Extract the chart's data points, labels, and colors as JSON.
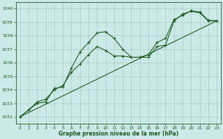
{
  "title": "Graphe pression niveau de la mer (hPa)",
  "bg_color": "#cce8e8",
  "grid_color": "#aacccc",
  "line_color": "#1a5c1a",
  "xlim": [
    -0.5,
    23.5
  ],
  "ylim": [
    1031.5,
    1040.5
  ],
  "yticks": [
    1032,
    1033,
    1034,
    1035,
    1036,
    1037,
    1038,
    1039,
    1040
  ],
  "xticks": [
    0,
    1,
    2,
    3,
    4,
    5,
    6,
    7,
    8,
    9,
    10,
    11,
    12,
    13,
    14,
    15,
    16,
    17,
    18,
    19,
    20,
    21,
    22,
    23
  ],
  "series1_x": [
    0,
    1,
    2,
    3,
    4,
    5,
    6,
    7,
    8,
    9,
    10,
    11,
    12,
    13,
    14,
    15,
    16,
    17,
    18,
    19,
    20,
    21,
    22,
    23
  ],
  "series1_y": [
    1032.0,
    1032.5,
    1033.0,
    1033.1,
    1034.1,
    1034.2,
    1035.6,
    1036.8,
    1037.5,
    1038.2,
    1038.3,
    1037.8,
    1037.0,
    1036.4,
    1036.4,
    1036.4,
    1037.2,
    1037.3,
    1039.1,
    1039.6,
    1039.8,
    1039.7,
    1039.1,
    1039.1
  ],
  "series2_x": [
    0,
    1,
    2,
    3,
    4,
    5,
    6,
    7,
    8,
    9,
    10,
    11,
    12,
    13,
    14,
    15,
    16,
    17,
    18,
    19,
    20,
    21,
    22,
    23
  ],
  "series2_y": [
    1032.0,
    1032.5,
    1033.1,
    1033.3,
    1034.0,
    1034.3,
    1035.3,
    1035.9,
    1036.6,
    1037.2,
    1036.9,
    1036.5,
    1036.5,
    1036.4,
    1036.4,
    1036.6,
    1037.5,
    1037.8,
    1039.2,
    1039.5,
    1039.85,
    1039.75,
    1039.15,
    1039.1
  ],
  "series3_x": [
    0,
    23
  ],
  "series3_y": [
    1032.0,
    1039.1
  ]
}
